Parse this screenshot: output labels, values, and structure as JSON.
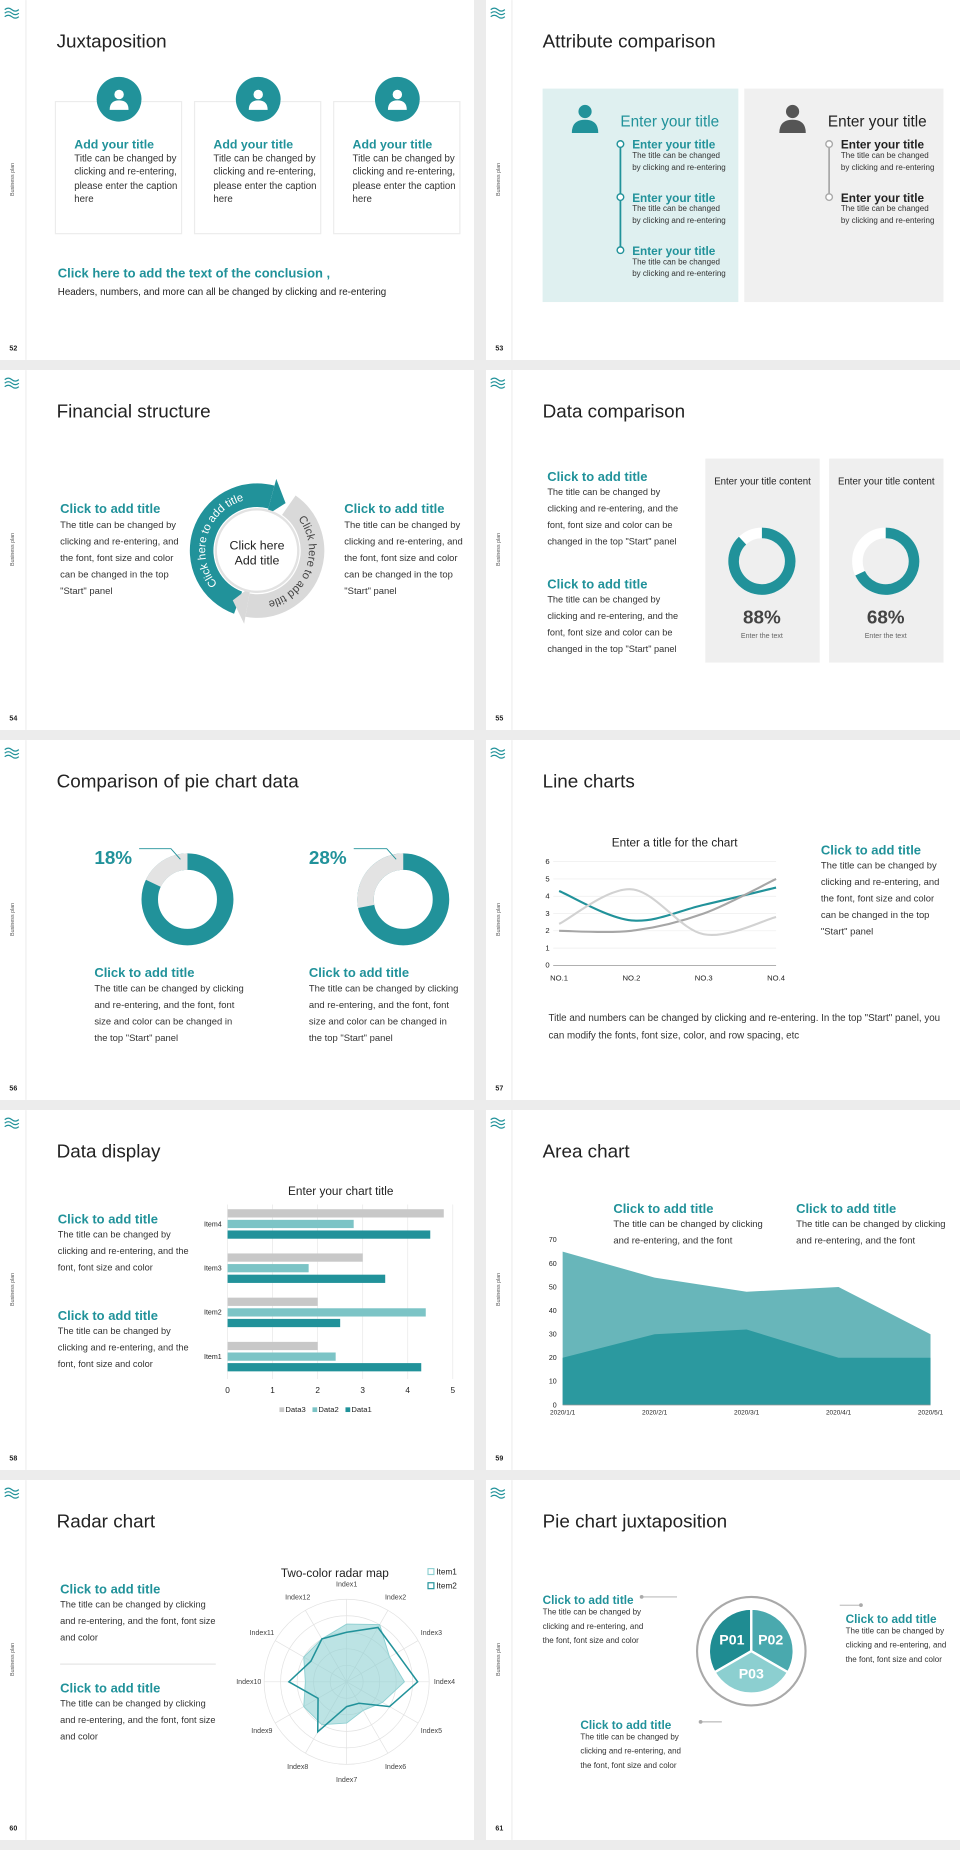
{
  "slides": [
    {
      "number": "52",
      "side": "Business plan",
      "title": "Juxtaposition",
      "cards": [
        {
          "title": "Add your title",
          "text": "Title can be changed by clicking and re-entering, please enter the caption here"
        },
        {
          "title": "Add your title",
          "text": "Title can be changed by clicking and re-entering, please enter the caption here"
        },
        {
          "title": "Add your title",
          "text": "Title can be changed by clicking and re-entering, please enter the caption here"
        }
      ],
      "conclusion": "Click here to add the text of the conclusion ,",
      "note": "Headers, numbers, and more can all be changed by clicking and re-entering"
    },
    {
      "number": "53",
      "side": "Business plan",
      "title": "Attribute comparison",
      "left": {
        "heading": "Enter your title",
        "items": [
          {
            "title": "Enter your title",
            "text": "The title can be changed by clicking and re-entering"
          },
          {
            "title": "Enter your title",
            "text": "The title can be changed by clicking and re-entering"
          },
          {
            "title": "Enter your title",
            "text": "The title can be changed by clicking and re-entering"
          }
        ]
      },
      "right": {
        "heading": "Enter your title",
        "items": [
          {
            "title": "Enter your title",
            "text": "The title can be changed by clicking and re-entering"
          },
          {
            "title": "Enter your title",
            "text": "The title can be changed by clicking and re-entering"
          }
        ]
      }
    },
    {
      "number": "54",
      "side": "Business plan",
      "title": "Financial structure",
      "left": {
        "title": "Click to add title",
        "text": "The title can be changed by clicking and re-entering, and the font, font size and color can be changed in the top \"Start\" panel"
      },
      "right": {
        "title": "Click to add title",
        "text": "The title can be changed by clicking and re-entering, and the font, font size and color can be changed in the top \"Start\" panel"
      },
      "cycle": {
        "center": [
          "Click here",
          "Add title"
        ],
        "arcs": [
          "Click here to add title",
          "Click here to add title"
        ]
      }
    },
    {
      "number": "55",
      "side": "Business plan",
      "title": "Data comparison",
      "blocks": [
        {
          "title": "Click to add title",
          "text": "The title can be changed by clicking and re-entering, and the font, font size and color can be changed in the top \"Start\" panel"
        },
        {
          "title": "Click to add title",
          "text": "The title can be changed by clicking and re-entering, and the font, font size and color can be changed in the top \"Start\" panel"
        }
      ],
      "panels": [
        {
          "title": "Enter your title content",
          "value": 88,
          "value_label": "88%",
          "caption": "Enter the text"
        },
        {
          "title": "Enter your title content",
          "value": 68,
          "value_label": "68%",
          "caption": "Enter the text"
        }
      ]
    },
    {
      "number": "56",
      "side": "Business plan",
      "title": "Comparison of pie chart data",
      "pies": [
        {
          "value": 18,
          "value_label": "18%",
          "title": "Click to add title",
          "text": "The title can be changed by clicking and re-entering, and the font, font size and color can be changed in the top \"Start\" panel"
        },
        {
          "value": 28,
          "value_label": "28%",
          "title": "Click to add title",
          "text": "The title can be changed by clicking and re-entering, and the font, font size and color can be changed in the top \"Start\" panel"
        }
      ]
    },
    {
      "number": "57",
      "side": "Business plan",
      "title": "Line charts",
      "chart": {
        "type": "line",
        "title": "Enter a title for the chart",
        "categories": [
          "NO.1",
          "NO.2",
          "NO.3",
          "NO.4"
        ],
        "series": [
          {
            "color": "#21929a",
            "values": [
              4.3,
              2.6,
              3.5,
              4.5
            ]
          },
          {
            "color": "#a6a6a6",
            "values": [
              2,
              2,
              3,
              5
            ]
          },
          {
            "color": "#d2d2d2",
            "values": [
              2.4,
              4.4,
              1.8,
              2.8
            ]
          }
        ],
        "ylim": [
          0,
          6
        ],
        "yticks": [
          0,
          1,
          2,
          3,
          4,
          5,
          6
        ],
        "grid": true
      },
      "side_block": {
        "title": "Click to add title",
        "text": "The title can be changed by clicking and re-entering, and the font, font size and color can be changed in the top \"Start\" panel"
      },
      "note": "Title and numbers can be changed by clicking and re-entering. In the top \"Start\" panel, you can modify the fonts, font size, color, and row spacing, etc"
    },
    {
      "number": "58",
      "side": "Business plan",
      "title": "Data display",
      "blocks": [
        {
          "title": "Click to add title",
          "text": "The title can be changed by clicking and re-entering, and the font, font size and color"
        },
        {
          "title": "Click to add title",
          "text": "The title can be changed by clicking and re-entering, and the font, font size and color"
        }
      ],
      "chart": {
        "type": "bar",
        "orientation": "horizontal",
        "title": "Enter your chart title",
        "categories": [
          "Item1",
          "Item2",
          "Item3",
          "Item4"
        ],
        "series": [
          {
            "name": "Data1",
            "color": "#21929a",
            "values": [
              4.3,
              2.5,
              3.5,
              4.5
            ]
          },
          {
            "name": "Data2",
            "color": "#7cc4c6",
            "values": [
              2.4,
              4.4,
              1.8,
              2.8
            ]
          },
          {
            "name": "Data3",
            "color": "#c8c8c8",
            "values": [
              2,
              2,
              3,
              4.8
            ]
          }
        ],
        "xlim": [
          0,
          5
        ],
        "xticks": [
          0,
          1,
          2,
          3,
          4,
          5
        ],
        "grid": true,
        "legend": "bottom"
      }
    },
    {
      "number": "59",
      "side": "Business plan",
      "title": "Area chart",
      "blocks": [
        {
          "title": "Click to add title",
          "text": "The title can be changed by clicking and re-entering, and the font"
        },
        {
          "title": "Click to add title",
          "text": "The title can be changed by clicking and re-entering, and the font"
        }
      ],
      "chart": {
        "type": "area",
        "x": [
          "2020/1/1",
          "2020/2/1",
          "2020/3/1",
          "2020/4/1",
          "2020/5/1"
        ],
        "series": [
          {
            "color": "#68b6ba",
            "values": [
              65,
              54,
              48,
              50,
              30
            ]
          },
          {
            "color": "#2b999f",
            "values": [
              20,
              30,
              32,
              20,
              20
            ]
          }
        ],
        "ylim": [
          0,
          70
        ],
        "yticks": [
          0,
          10,
          20,
          30,
          40,
          50,
          60,
          70
        ]
      }
    },
    {
      "number": "60",
      "side": "Business plan",
      "title": "Radar chart",
      "blocks": [
        {
          "title": "Click to add title",
          "text": "The title can be changed by clicking and re-entering, and the font, font size and color"
        },
        {
          "title": "Click to add title",
          "text": "The title can be changed by clicking and re-entering, and the font, font size and color"
        }
      ],
      "chart": {
        "type": "radar",
        "title": "Two-color radar map",
        "categories": [
          "Index1",
          "Index2",
          "Index3",
          "Index4",
          "Index5",
          "Index6",
          "Index7",
          "Index8",
          "Index9",
          "Index10",
          "Index11",
          "Index12"
        ],
        "series": [
          {
            "name": "Item1",
            "color": "#8fd0d2",
            "values": [
              3.5,
              4,
              3,
              3.5,
              2.5,
              2,
              2.5,
              3,
              3,
              2.5,
              3,
              3
            ]
          },
          {
            "name": "Item2",
            "color": "#21929a",
            "values": [
              3,
              3.8,
              3.5,
              4.3,
              3,
              1.5,
              1.5,
              3.5,
              2,
              3.5,
              2.5,
              3
            ]
          }
        ],
        "rlim": [
          0,
          5
        ],
        "rticks": [
          1,
          2,
          3,
          4,
          5
        ],
        "legend": "top-right"
      }
    },
    {
      "number": "61",
      "side": "Business plan",
      "title": "Pie chart juxtaposition",
      "blocks": [
        {
          "title": "Click to add title",
          "text": "The title can be changed by clicking and re-entering, and the font, font size and color"
        },
        {
          "title": "Click to add title",
          "text": "The title can be changed by clicking and re-entering, and the font, font size and color"
        },
        {
          "title": "Click to add title",
          "text": "The title can be changed by clicking and re-entering, and the font, font size and color"
        }
      ],
      "segments": [
        "P01",
        "P02",
        "P03"
      ]
    }
  ]
}
